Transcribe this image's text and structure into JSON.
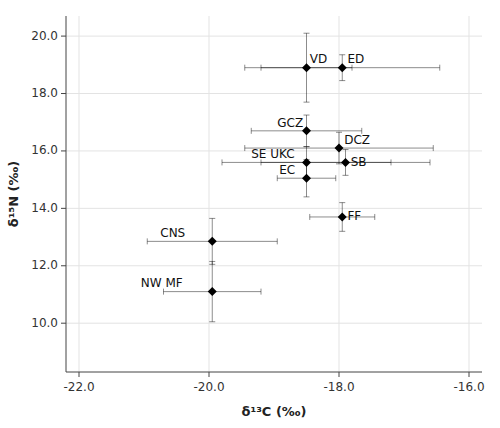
{
  "chart_data": {
    "type": "scatter",
    "xlabel": "δ¹³C (‰)",
    "ylabel": "δ¹⁵N (‰)",
    "color": "#000000",
    "marker": "diamond",
    "xlim": [
      -22.2,
      -15.8
    ],
    "ylim": [
      8.3,
      20.7
    ],
    "xticks": [
      {
        "value": -22.0,
        "label": "-22.0"
      },
      {
        "value": -20.0,
        "label": "-20.0"
      },
      {
        "value": -18.0,
        "label": "-18.0"
      },
      {
        "value": -16.0,
        "label": "-16.0"
      }
    ],
    "yticks": [
      {
        "value": 10.0,
        "label": "10.0"
      },
      {
        "value": 12.0,
        "label": "12.0"
      },
      {
        "value": 14.0,
        "label": "14.0"
      },
      {
        "value": 16.0,
        "label": "16.0"
      },
      {
        "value": 18.0,
        "label": "18.0"
      },
      {
        "value": 20.0,
        "label": "20.0"
      }
    ],
    "points": [
      {
        "label": "VD",
        "x": -18.5,
        "y": 18.9,
        "xerr": 0.7,
        "yerr": 1.2,
        "label_x": -18.45,
        "label_y": 19.05
      },
      {
        "label": "ED",
        "x": -17.95,
        "y": 18.9,
        "xerr": 1.5,
        "yerr": 0.45,
        "label_x": -17.87,
        "label_y": 19.05
      },
      {
        "label": "GCZ",
        "x": -18.5,
        "y": 16.7,
        "xerr": 0.85,
        "yerr": 0.55,
        "label_x": -18.95,
        "label_y": 16.85
      },
      {
        "label": "DCZ",
        "x": -18.0,
        "y": 16.1,
        "xerr": 1.45,
        "yerr": 0.55,
        "label_x": -17.92,
        "label_y": 16.25
      },
      {
        "label": "SE UKC",
        "x": -18.5,
        "y": 15.6,
        "xerr": 1.3,
        "yerr": 0.55,
        "label_x": -19.35,
        "label_y": 15.75
      },
      {
        "label": "SB",
        "x": -17.9,
        "y": 15.6,
        "xerr": 1.3,
        "yerr": 0.45,
        "label_x": -17.82,
        "label_y": 15.48
      },
      {
        "label": "EC",
        "x": -18.5,
        "y": 15.05,
        "xerr": 0.45,
        "yerr": 0.65,
        "label_x": -18.92,
        "label_y": 15.18
      },
      {
        "label": "FF",
        "x": -17.95,
        "y": 13.7,
        "xerr": 0.5,
        "yerr": 0.5,
        "label_x": -17.87,
        "label_y": 13.58
      },
      {
        "label": "CNS",
        "x": -19.95,
        "y": 12.85,
        "xerr": 1.0,
        "yerr": 0.8,
        "label_x": -20.75,
        "label_y": 13.0
      },
      {
        "label": "NW MF",
        "x": -19.95,
        "y": 11.1,
        "xerr": 0.75,
        "yerr": 1.05,
        "label_x": -21.05,
        "label_y": 11.25
      }
    ]
  }
}
